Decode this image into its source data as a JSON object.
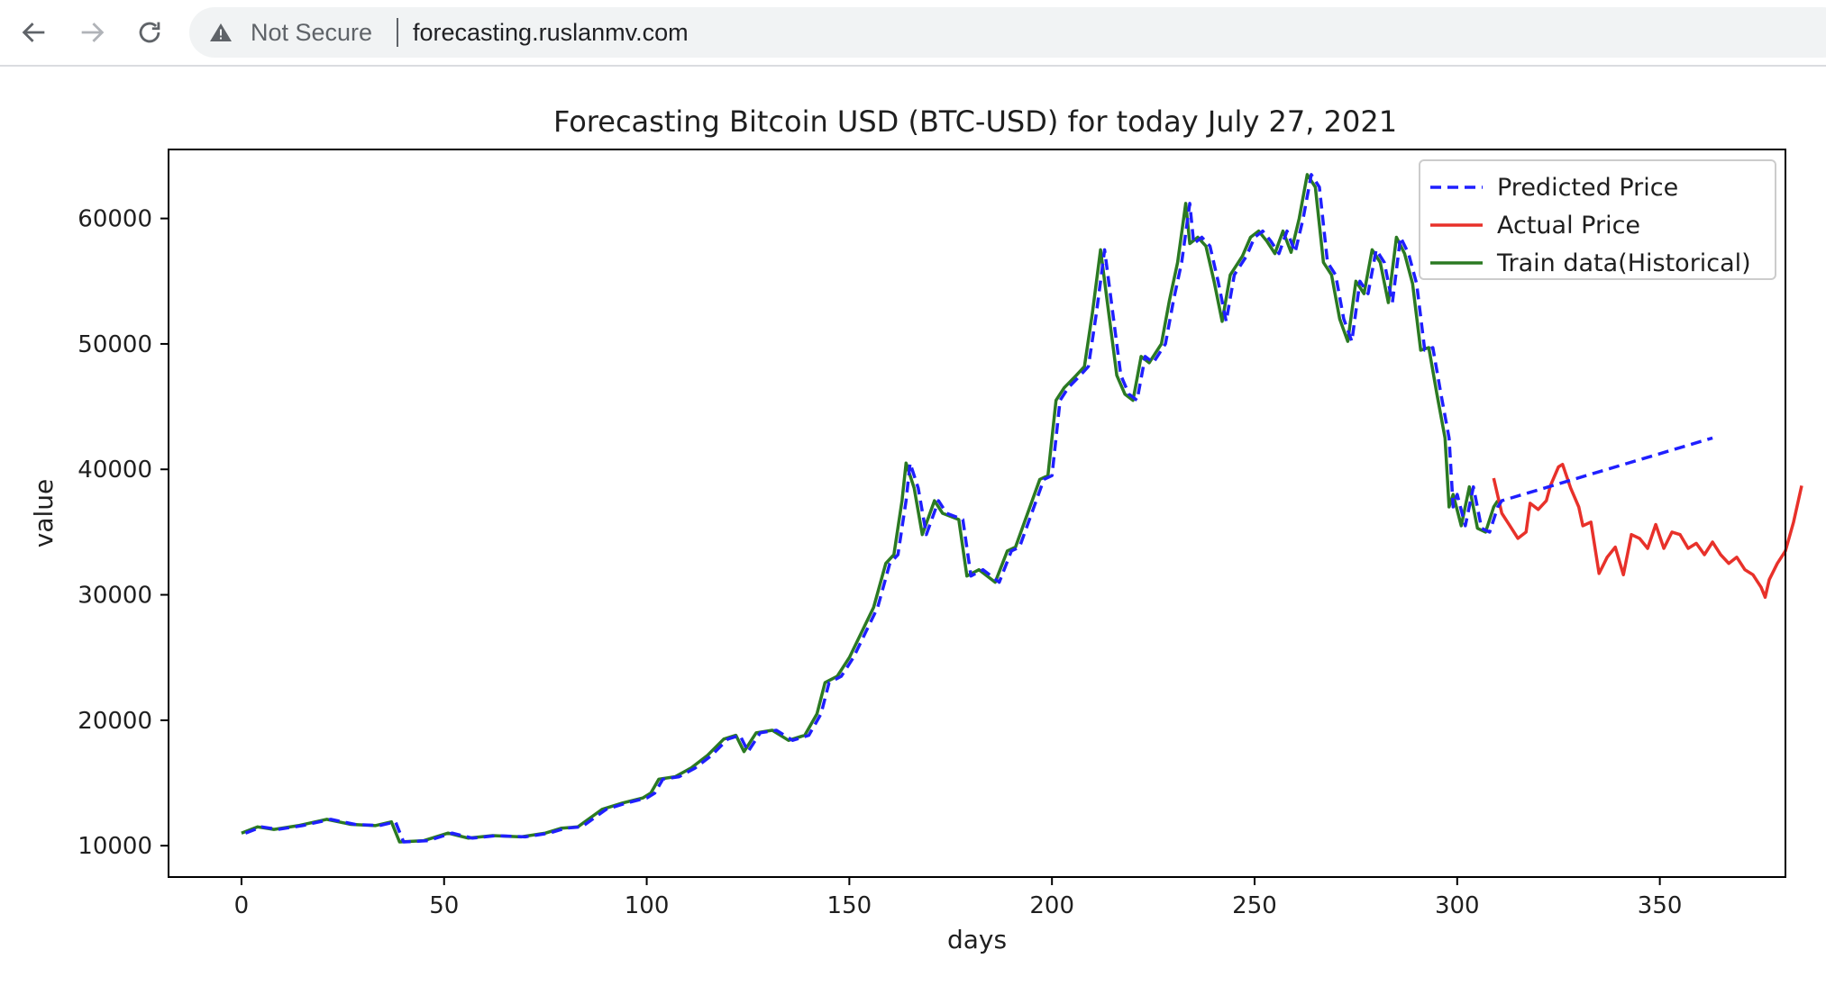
{
  "browser": {
    "security_label": "Not Secure",
    "url": "forecasting.ruslanmv.com",
    "icons": [
      "back-arrow-icon",
      "forward-arrow-icon",
      "reload-icon",
      "warning-triangle-icon"
    ]
  },
  "chart_data": {
    "type": "line",
    "title": "Forecasting Bitcoin USD (BTC-USD) for today July 27, 2021",
    "xlabel": "days",
    "ylabel": "value",
    "xlim": [
      -18,
      381
    ],
    "ylim": [
      7500,
      65500
    ],
    "xticks": [
      0,
      50,
      100,
      150,
      200,
      250,
      300,
      350
    ],
    "yticks": [
      10000,
      20000,
      30000,
      40000,
      50000,
      60000
    ],
    "grid": false,
    "legend": "top-right",
    "series": [
      {
        "name": "Predicted Price",
        "color": "#1f1fff",
        "style": "dashed",
        "points": [
          [
            1,
            11000
          ],
          [
            5,
            11500
          ],
          [
            9,
            11300
          ],
          [
            15,
            11600
          ],
          [
            22,
            12100
          ],
          [
            28,
            11700
          ],
          [
            34,
            11600
          ],
          [
            38,
            11900
          ],
          [
            40,
            10300
          ],
          [
            46,
            10400
          ],
          [
            52,
            11000
          ],
          [
            57,
            10600
          ],
          [
            63,
            10800
          ],
          [
            70,
            10700
          ],
          [
            76,
            11000
          ],
          [
            80,
            11400
          ],
          [
            84,
            11500
          ],
          [
            87,
            12200
          ],
          [
            90,
            12900
          ],
          [
            95,
            13400
          ],
          [
            100,
            13800
          ],
          [
            102,
            14200
          ],
          [
            104,
            15300
          ],
          [
            108,
            15500
          ],
          [
            112,
            16200
          ],
          [
            116,
            17200
          ],
          [
            120,
            18500
          ],
          [
            123,
            18800
          ],
          [
            125,
            17500
          ],
          [
            128,
            19000
          ],
          [
            132,
            19200
          ],
          [
            136,
            18400
          ],
          [
            140,
            18800
          ],
          [
            143,
            20500
          ],
          [
            145,
            23000
          ],
          [
            148,
            23500
          ],
          [
            151,
            25000
          ],
          [
            154,
            27000
          ],
          [
            157,
            29000
          ],
          [
            160,
            32500
          ],
          [
            162,
            33200
          ],
          [
            164,
            37500
          ],
          [
            165,
            40500
          ],
          [
            167,
            38500
          ],
          [
            169,
            34800
          ],
          [
            172,
            37500
          ],
          [
            174,
            36500
          ],
          [
            178,
            36000
          ],
          [
            180,
            31500
          ],
          [
            183,
            32000
          ],
          [
            187,
            31000
          ],
          [
            190,
            33500
          ],
          [
            192,
            33800
          ],
          [
            195,
            36500
          ],
          [
            198,
            39200
          ],
          [
            200,
            39500
          ],
          [
            202,
            45500
          ],
          [
            204,
            46500
          ],
          [
            207,
            47500
          ],
          [
            209,
            48200
          ],
          [
            211,
            52500
          ],
          [
            213,
            57500
          ],
          [
            215,
            52500
          ],
          [
            217,
            47500
          ],
          [
            219,
            46000
          ],
          [
            221,
            45500
          ],
          [
            223,
            49000
          ],
          [
            225,
            48500
          ],
          [
            228,
            50000
          ],
          [
            230,
            53500
          ],
          [
            232,
            56500
          ],
          [
            234,
            61200
          ],
          [
            235,
            58000
          ],
          [
            237,
            58500
          ],
          [
            239,
            57800
          ],
          [
            241,
            55000
          ],
          [
            243,
            51800
          ],
          [
            245,
            55500
          ],
          [
            248,
            57000
          ],
          [
            250,
            58500
          ],
          [
            252,
            59000
          ],
          [
            254,
            58200
          ],
          [
            256,
            57200
          ],
          [
            258,
            59000
          ],
          [
            260,
            57300
          ],
          [
            262,
            60000
          ],
          [
            264,
            63500
          ],
          [
            266,
            62500
          ],
          [
            268,
            56500
          ],
          [
            270,
            55500
          ],
          [
            272,
            52000
          ],
          [
            274,
            50200
          ],
          [
            276,
            55000
          ],
          [
            278,
            54000
          ],
          [
            280,
            57500
          ],
          [
            282,
            56500
          ],
          [
            284,
            53300
          ],
          [
            286,
            58500
          ],
          [
            288,
            57200
          ],
          [
            290,
            54800
          ],
          [
            292,
            49500
          ],
          [
            294,
            49700
          ],
          [
            296,
            46000
          ],
          [
            298,
            42500
          ],
          [
            299,
            37000
          ],
          [
            300,
            38000
          ],
          [
            302,
            35500
          ],
          [
            304,
            38600
          ],
          [
            306,
            35300
          ],
          [
            308,
            35000
          ],
          [
            310,
            37000
          ],
          [
            311,
            37500
          ],
          [
            363,
            42500
          ]
        ]
      },
      {
        "name": "Actual Price",
        "color": "#e8312a",
        "style": "solid",
        "points": [
          [
            309,
            39300
          ],
          [
            311,
            36500
          ],
          [
            313,
            35500
          ],
          [
            315,
            34500
          ],
          [
            317,
            35000
          ],
          [
            318,
            37300
          ],
          [
            320,
            36800
          ],
          [
            322,
            37500
          ],
          [
            323,
            38700
          ],
          [
            325,
            40200
          ],
          [
            326,
            40400
          ],
          [
            328,
            38500
          ],
          [
            330,
            37000
          ],
          [
            331,
            35500
          ],
          [
            333,
            35800
          ],
          [
            335,
            31700
          ],
          [
            337,
            33000
          ],
          [
            339,
            33800
          ],
          [
            341,
            31600
          ],
          [
            343,
            34800
          ],
          [
            345,
            34500
          ],
          [
            347,
            33700
          ],
          [
            349,
            35600
          ],
          [
            351,
            33700
          ],
          [
            353,
            35000
          ],
          [
            355,
            34800
          ],
          [
            357,
            33700
          ],
          [
            359,
            34100
          ],
          [
            361,
            33200
          ],
          [
            363,
            34200
          ],
          [
            365,
            33200
          ],
          [
            367,
            32500
          ],
          [
            369,
            33000
          ],
          [
            371,
            32000
          ],
          [
            373,
            31600
          ],
          [
            375,
            30600
          ],
          [
            376,
            29800
          ],
          [
            377,
            31200
          ],
          [
            379,
            32500
          ],
          [
            381,
            33500
          ],
          [
            383,
            35800
          ],
          [
            385,
            38700
          ]
        ]
      },
      {
        "name": "Train data(Historical)",
        "color": "#2b7a22",
        "style": "solid",
        "points": [
          [
            0,
            11000
          ],
          [
            4,
            11500
          ],
          [
            8,
            11300
          ],
          [
            14,
            11600
          ],
          [
            21,
            12100
          ],
          [
            27,
            11700
          ],
          [
            33,
            11600
          ],
          [
            37,
            11900
          ],
          [
            39,
            10300
          ],
          [
            45,
            10400
          ],
          [
            51,
            11000
          ],
          [
            56,
            10600
          ],
          [
            62,
            10800
          ],
          [
            69,
            10700
          ],
          [
            75,
            11000
          ],
          [
            79,
            11400
          ],
          [
            83,
            11500
          ],
          [
            86,
            12200
          ],
          [
            89,
            12900
          ],
          [
            94,
            13400
          ],
          [
            99,
            13800
          ],
          [
            101,
            14200
          ],
          [
            103,
            15300
          ],
          [
            107,
            15500
          ],
          [
            111,
            16200
          ],
          [
            115,
            17200
          ],
          [
            119,
            18500
          ],
          [
            122,
            18800
          ],
          [
            124,
            17500
          ],
          [
            127,
            19000
          ],
          [
            131,
            19200
          ],
          [
            135,
            18400
          ],
          [
            139,
            18800
          ],
          [
            142,
            20500
          ],
          [
            144,
            23000
          ],
          [
            147,
            23500
          ],
          [
            150,
            25000
          ],
          [
            153,
            27000
          ],
          [
            156,
            29000
          ],
          [
            159,
            32500
          ],
          [
            161,
            33200
          ],
          [
            163,
            37500
          ],
          [
            164,
            40500
          ],
          [
            166,
            38500
          ],
          [
            168,
            34800
          ],
          [
            171,
            37500
          ],
          [
            173,
            36500
          ],
          [
            177,
            36000
          ],
          [
            179,
            31500
          ],
          [
            182,
            32000
          ],
          [
            186,
            31000
          ],
          [
            189,
            33500
          ],
          [
            191,
            33800
          ],
          [
            194,
            36500
          ],
          [
            197,
            39200
          ],
          [
            199,
            39500
          ],
          [
            201,
            45500
          ],
          [
            203,
            46500
          ],
          [
            206,
            47500
          ],
          [
            208,
            48200
          ],
          [
            210,
            52500
          ],
          [
            212,
            57500
          ],
          [
            214,
            52500
          ],
          [
            216,
            47500
          ],
          [
            218,
            46000
          ],
          [
            220,
            45500
          ],
          [
            222,
            49000
          ],
          [
            224,
            48500
          ],
          [
            227,
            50000
          ],
          [
            229,
            53500
          ],
          [
            231,
            56500
          ],
          [
            233,
            61200
          ],
          [
            234,
            58000
          ],
          [
            236,
            58500
          ],
          [
            238,
            57800
          ],
          [
            240,
            55000
          ],
          [
            242,
            51800
          ],
          [
            244,
            55500
          ],
          [
            247,
            57000
          ],
          [
            249,
            58500
          ],
          [
            251,
            59000
          ],
          [
            253,
            58200
          ],
          [
            255,
            57200
          ],
          [
            257,
            59000
          ],
          [
            259,
            57300
          ],
          [
            261,
            60000
          ],
          [
            263,
            63500
          ],
          [
            265,
            62500
          ],
          [
            267,
            56500
          ],
          [
            269,
            55500
          ],
          [
            271,
            52000
          ],
          [
            273,
            50200
          ],
          [
            275,
            55000
          ],
          [
            277,
            54000
          ],
          [
            279,
            57500
          ],
          [
            281,
            56500
          ],
          [
            283,
            53300
          ],
          [
            285,
            58500
          ],
          [
            287,
            57200
          ],
          [
            289,
            54800
          ],
          [
            291,
            49500
          ],
          [
            293,
            49700
          ],
          [
            295,
            46000
          ],
          [
            297,
            42500
          ],
          [
            298,
            37000
          ],
          [
            299,
            38000
          ],
          [
            301,
            35500
          ],
          [
            303,
            38600
          ],
          [
            305,
            35300
          ],
          [
            307,
            35000
          ],
          [
            309,
            37000
          ],
          [
            310,
            37500
          ]
        ]
      }
    ]
  }
}
